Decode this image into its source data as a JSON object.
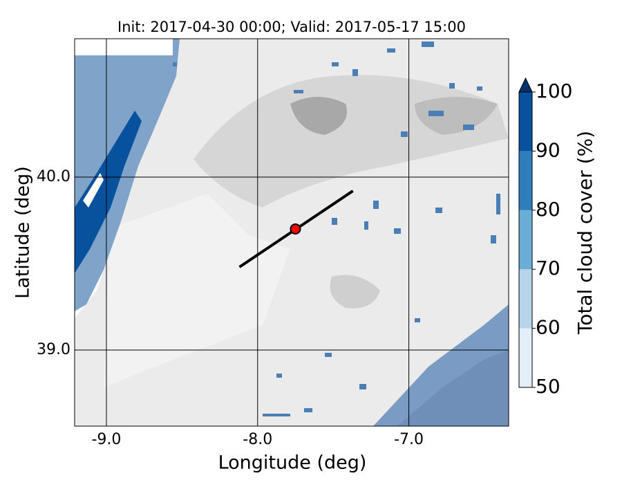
{
  "chart_data": {
    "type": "map",
    "title": "Init: 2017-04-30 00:00; Valid: 2017-05-17 15:00",
    "x_label": "Longitude (deg)",
    "y_label": "Latitude (deg)",
    "xlim": [
      -9.21,
      -6.34
    ],
    "ylim": [
      38.56,
      40.8
    ],
    "xticks": [
      {
        "value": -9,
        "label": "-9.0"
      },
      {
        "value": -8,
        "label": "-8.0"
      },
      {
        "value": -7,
        "label": "-7.0"
      }
    ],
    "yticks": [
      {
        "value": 39,
        "label": "39.0"
      },
      {
        "value": 40,
        "label": "40.0"
      }
    ],
    "grid": true,
    "section": {
      "start": [
        -8.12,
        39.48
      ],
      "end": [
        -7.37,
        39.92
      ],
      "color": "#000000"
    },
    "point": {
      "lon": -7.75,
      "lat": 39.7,
      "color": "#ff0000"
    },
    "colorbar": {
      "label": "Total cloud cover (%)",
      "ticks": [
        50,
        60,
        70,
        80,
        90,
        100
      ],
      "colors": [
        "#e3eef8",
        "#b7d4ea",
        "#6aaed6",
        "#2e7ebc",
        "#08519c"
      ],
      "extend_color": "#08306b"
    }
  }
}
